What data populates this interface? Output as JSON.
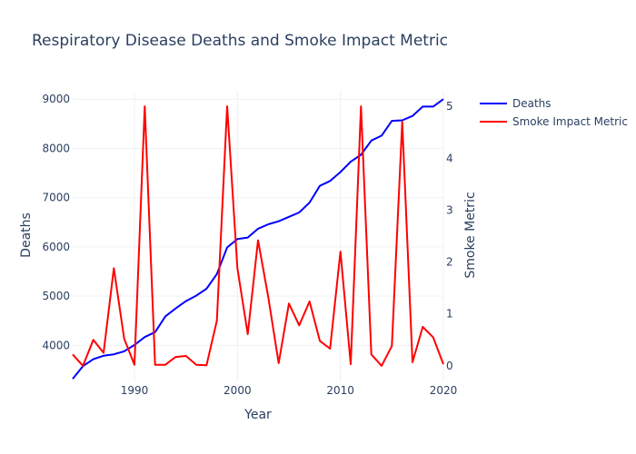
{
  "chart_data": {
    "type": "line",
    "title": "Respiratory Disease Deaths and Smoke Impact Metric",
    "xlabel": "Year",
    "ylabel": "Deaths",
    "y2label": "Smoke Metric",
    "xlim": [
      1984,
      2020
    ],
    "ylim": [
      3270,
      9170
    ],
    "y2lim": [
      -0.3,
      5.3
    ],
    "x_ticks": [
      1990,
      2000,
      2010,
      2020
    ],
    "y_ticks": [
      4000,
      5000,
      6000,
      7000,
      8000,
      9000
    ],
    "y2_ticks": [
      0,
      1,
      2,
      3,
      4,
      5
    ],
    "grid": true,
    "legend_position": "top-right",
    "series": [
      {
        "name": "Deaths",
        "axis": "y",
        "color": "#0000ff",
        "x": [
          1984,
          1985,
          1986,
          1987,
          1988,
          1989,
          1990,
          1991,
          1992,
          1993,
          1994,
          1995,
          1996,
          1997,
          1998,
          1999,
          2000,
          2001,
          2002,
          2003,
          2004,
          2005,
          2006,
          2007,
          2008,
          2009,
          2010,
          2011,
          2012,
          2013,
          2014,
          2015,
          2016,
          2017,
          2018,
          2019,
          2020
        ],
        "values": [
          3320,
          3580,
          3720,
          3790,
          3820,
          3880,
          4010,
          4170,
          4270,
          4590,
          4750,
          4900,
          5010,
          5150,
          5450,
          5990,
          6160,
          6190,
          6370,
          6460,
          6520,
          6610,
          6700,
          6900,
          7240,
          7340,
          7520,
          7730,
          7870,
          8160,
          8260,
          8560,
          8570,
          8660,
          8850,
          8850,
          9000
        ]
      },
      {
        "name": "Smoke Impact Metric",
        "axis": "y2",
        "color": "#ff0000",
        "x": [
          1984,
          1985,
          1986,
          1987,
          1988,
          1989,
          1990,
          1991,
          1992,
          1993,
          1994,
          1995,
          1996,
          1997,
          1998,
          1999,
          2000,
          2001,
          2002,
          2003,
          2004,
          2005,
          2006,
          2007,
          2008,
          2009,
          2010,
          2011,
          2012,
          2013,
          2014,
          2015,
          2016,
          2017,
          2018,
          2019,
          2020
        ],
        "values": [
          0.22,
          0.0,
          0.5,
          0.25,
          1.88,
          0.52,
          0.02,
          5.0,
          0.02,
          0.02,
          0.17,
          0.19,
          0.02,
          0.01,
          0.87,
          5.0,
          1.88,
          0.61,
          2.42,
          1.32,
          0.05,
          1.2,
          0.78,
          1.24,
          0.48,
          0.33,
          2.2,
          0.03,
          5.0,
          0.22,
          0.0,
          0.38,
          4.7,
          0.07,
          0.75,
          0.55,
          0.03
        ]
      }
    ]
  }
}
